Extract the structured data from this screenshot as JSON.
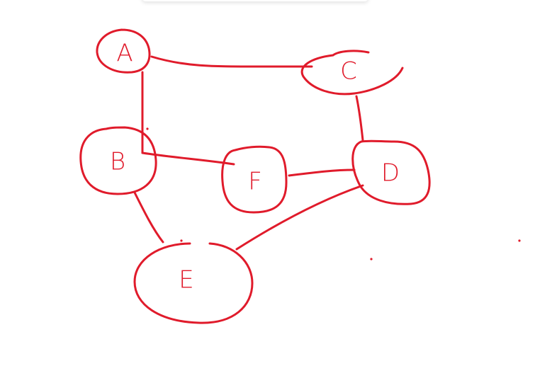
{
  "colors": {
    "ink": "#e01b2b",
    "background": "#ffffff"
  },
  "nodes": [
    {
      "id": "A",
      "label": "A"
    },
    {
      "id": "C",
      "label": "C"
    },
    {
      "id": "B",
      "label": "B"
    },
    {
      "id": "F",
      "label": "F"
    },
    {
      "id": "D",
      "label": "D"
    },
    {
      "id": "E",
      "label": "E"
    }
  ],
  "edges": [
    {
      "from": "A",
      "to": "C"
    },
    {
      "from": "A",
      "to": "B"
    },
    {
      "from": "B",
      "to": "F"
    },
    {
      "from": "F",
      "to": "D"
    },
    {
      "from": "C",
      "to": "D"
    },
    {
      "from": "B",
      "to": "E"
    },
    {
      "from": "E",
      "to": "D"
    }
  ]
}
